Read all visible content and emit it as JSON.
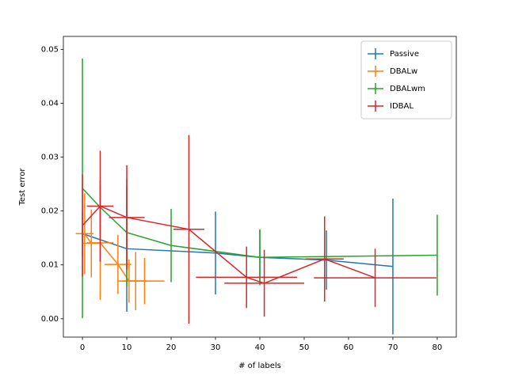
{
  "chart_data": {
    "type": "errorbar_line",
    "xlabel": "# of labels",
    "ylabel": "Test error",
    "xlim": [
      -4.3,
      84.3
    ],
    "ylim": [
      -0.0034,
      0.0524
    ],
    "xticks": [
      0,
      10,
      20,
      30,
      40,
      50,
      60,
      70,
      80
    ],
    "yticks": [
      {
        "value": 0,
        "label": "0.00"
      },
      {
        "value": 0.01,
        "label": "0.01"
      },
      {
        "value": 0.02,
        "label": "0.02"
      },
      {
        "value": 0.03,
        "label": "0.03"
      },
      {
        "value": 0.04,
        "label": "0.04"
      },
      {
        "value": 0.05,
        "label": "0.05"
      }
    ],
    "legend": "upper right",
    "series": [
      {
        "name": "Passive",
        "color": "#1f77b4",
        "x": [
          0,
          10,
          30,
          40,
          55,
          70
        ],
        "values": [
          0.0158,
          0.013,
          0.0122,
          0.0114,
          0.0109,
          0.0097
        ],
        "yerr": [
          0.004,
          0.0117,
          0.0077,
          0.005,
          0.0055,
          0.0126
        ]
      },
      {
        "name": "DBALw",
        "color": "#ff7f0e",
        "x": [
          0.5,
          2,
          4,
          8,
          10.5,
          12,
          14
        ],
        "values": [
          0.0158,
          0.014,
          0.0141,
          0.0101,
          0.007,
          0.007,
          0.007
        ],
        "xerr": [
          2,
          2,
          3,
          3,
          2.5,
          3,
          4.5
        ],
        "yerr": [
          0.0075,
          0.0063,
          0.0106,
          0.0055,
          0.004,
          0.0054,
          0.0043
        ]
      },
      {
        "name": "DBALwm",
        "color": "#2ca02c",
        "x": [
          0,
          4,
          10,
          20,
          40,
          80
        ],
        "values": [
          0.0242,
          0.0207,
          0.016,
          0.0136,
          0.0114,
          0.0118
        ],
        "yerr": [
          0.0241,
          0.005,
          0.01,
          0.0068,
          0.0052,
          0.0075
        ]
      },
      {
        "name": "IDBAL",
        "color": "#d62728",
        "x": [
          0,
          4,
          10,
          24,
          37,
          41,
          54.6,
          66
        ],
        "values": [
          0.0173,
          0.0209,
          0.0188,
          0.0166,
          0.0077,
          0.0066,
          0.0111,
          0.0076
        ],
        "xerr": [
          0,
          3,
          4,
          3.5,
          11.4,
          9,
          4.3,
          13.8
        ],
        "yerr": [
          0.0095,
          0.0103,
          0.0097,
          0.0175,
          0.0057,
          0.0062,
          0.0079,
          0.0054
        ]
      }
    ]
  }
}
